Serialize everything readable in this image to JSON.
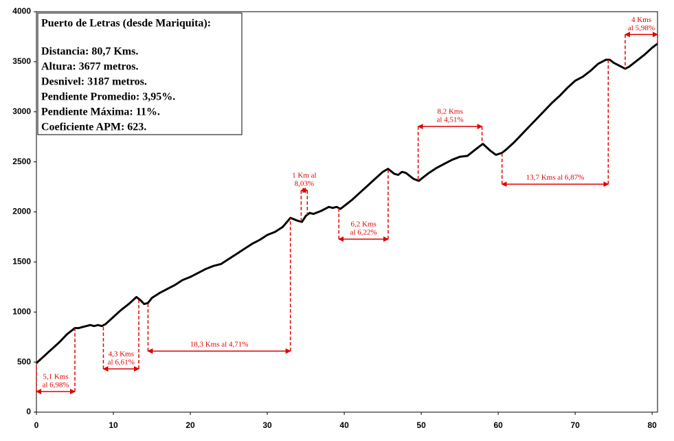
{
  "chart_data": {
    "type": "line",
    "x": [
      0,
      1,
      2,
      3,
      4,
      5,
      5.5,
      6,
      7,
      7.5,
      8,
      8.5,
      9,
      10,
      11,
      12,
      13,
      13.5,
      14,
      14.5,
      15,
      16,
      17,
      18,
      19,
      20,
      21,
      22,
      23,
      24,
      25,
      26,
      27,
      28,
      29,
      30,
      31,
      32,
      33,
      34,
      34.5,
      35,
      35.5,
      36,
      37,
      38,
      38.5,
      39,
      39.5,
      40,
      41,
      42,
      43,
      44,
      45,
      45.7,
      46.5,
      47,
      47.5,
      48,
      49,
      49.7,
      50,
      51,
      52,
      53,
      54,
      55,
      56,
      57,
      58,
      59,
      59.7,
      60.5,
      61,
      62,
      63,
      64,
      65,
      66,
      67,
      68,
      69,
      70,
      71,
      72,
      73,
      74,
      74.5,
      75,
      76,
      76.5,
      77,
      78,
      79,
      80,
      80.7
    ],
    "series": [
      {
        "color": "#000000",
        "values": [
          490,
          560,
          630,
          700,
          780,
          840,
          840,
          850,
          870,
          860,
          870,
          860,
          880,
          950,
          1020,
          1080,
          1150,
          1120,
          1080,
          1090,
          1140,
          1190,
          1230,
          1270,
          1320,
          1350,
          1390,
          1430,
          1460,
          1480,
          1530,
          1580,
          1630,
          1680,
          1720,
          1770,
          1800,
          1850,
          1940,
          1910,
          1900,
          1960,
          1990,
          1980,
          2010,
          2050,
          2040,
          2050,
          2030,
          2060,
          2120,
          2190,
          2260,
          2330,
          2400,
          2430,
          2380,
          2370,
          2400,
          2390,
          2330,
          2310,
          2330,
          2390,
          2440,
          2480,
          2520,
          2550,
          2560,
          2620,
          2680,
          2610,
          2570,
          2590,
          2620,
          2690,
          2770,
          2850,
          2930,
          3010,
          3090,
          3160,
          3240,
          3310,
          3350,
          3410,
          3480,
          3520,
          3520,
          3490,
          3450,
          3430,
          3450,
          3510,
          3570,
          3640,
          3680
        ]
      }
    ],
    "xlim": [
      0,
      80.7
    ],
    "ylim": [
      0,
      4000
    ],
    "xticks": [
      0,
      10,
      20,
      30,
      40,
      50,
      60,
      70,
      80
    ],
    "yticks": [
      0,
      500,
      1000,
      1500,
      2000,
      2500,
      3000,
      3500,
      4000
    ],
    "annotation_color": "#e00000",
    "annotations": [
      {
        "x": [
          0,
          5
        ],
        "y": 206,
        "lines": [
          "5,1 Kms",
          "al 6,98%"
        ]
      },
      {
        "x": [
          8.7,
          13.3
        ],
        "y": 432,
        "lines": [
          "4,3 Kms",
          "al 6,61%"
        ]
      },
      {
        "x": [
          14.5,
          33
        ],
        "y": 610,
        "lines": [
          "18,3 Kms al 4,71%"
        ]
      },
      {
        "x": [
          34.4,
          35.2
        ],
        "y": 2215,
        "lines": [
          "1 Km al",
          "8,03%"
        ]
      },
      {
        "x": [
          39.3,
          45.7
        ],
        "y": 1728,
        "lines": [
          "6,2 Kms",
          "al 6,22%"
        ]
      },
      {
        "x": [
          49.6,
          57.9
        ],
        "y": 2853,
        "lines": [
          "8,2 Kms",
          "al 4,51%"
        ]
      },
      {
        "x": [
          60.5,
          74.3
        ],
        "y": 2277,
        "lines": [
          "13,7 Kms al 6,87%"
        ]
      },
      {
        "x": [
          76.5,
          80.7
        ],
        "y": 3772,
        "lines": [
          "4 Kms",
          "al 5,98%"
        ]
      }
    ],
    "info_box": {
      "title": "Puerto de Letras (desde Mariquita):",
      "lines": [
        "Distancia: 80,7 Kms.",
        "Altura: 3677 metros.",
        "Desnivel: 3187 metros.",
        "Pendiente Promedio: 3,95%.",
        "Pendiente Máxima: 11%.",
        "Coeficiente APM: 623."
      ]
    }
  }
}
